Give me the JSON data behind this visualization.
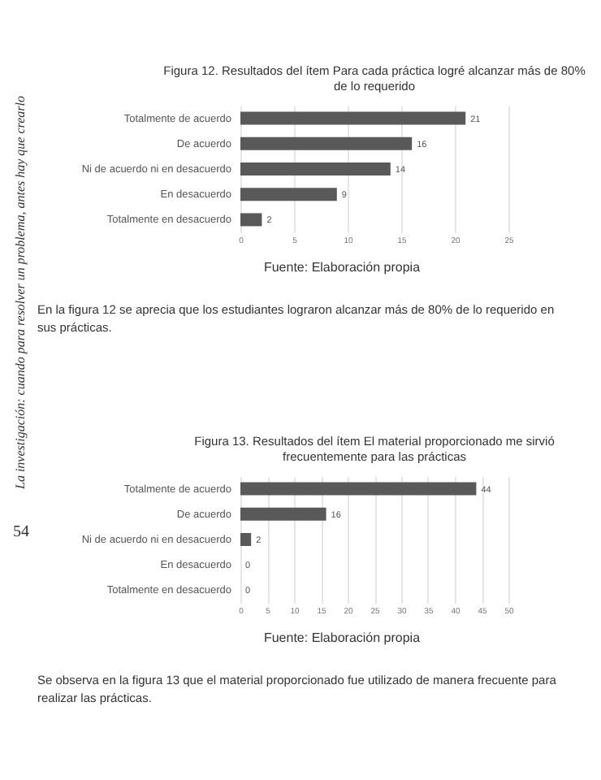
{
  "chart_data": [
    {
      "type": "bar",
      "orientation": "horizontal",
      "title": "Figura 12. Resultados del ítem Para cada práctica logré alcanzar más de 80% de lo requerido",
      "categories": [
        "Totalmente de acuerdo",
        "De acuerdo",
        "Ni de acuerdo ni en desacuerdo",
        "En desacuerdo",
        "Totalmente en desacuerdo"
      ],
      "values": [
        21,
        16,
        14,
        9,
        2
      ],
      "color": "#595959",
      "xlim": [
        0,
        25
      ],
      "xticks": [
        0,
        5,
        10,
        15,
        20,
        25
      ],
      "grid": "x",
      "data_labels": true,
      "annotations": [
        "Fuente: Elaboración propia",
        "En la figura 12 se aprecia que los estudiantes lograron alcanzar más de 80% de lo requerido en sus prácticas.",
        "La investigación: cuando para resolver un problema, antes hay que crearlo",
        "54"
      ]
    },
    {
      "type": "bar",
      "orientation": "horizontal",
      "title": "Figura 13. Resultados del ítem El material proporcionado me sirvió frecuentemente para las prácticas",
      "categories": [
        "Totalmente de acuerdo",
        "De acuerdo",
        "Ni de acuerdo ni en desacuerdo",
        "En desacuerdo",
        "Totalmente en desacuerdo"
      ],
      "values": [
        44,
        16,
        2,
        0,
        0
      ],
      "color": "#595959",
      "xlim": [
        0,
        50
      ],
      "xticks": [
        0,
        5,
        10,
        15,
        20,
        25,
        30,
        35,
        40,
        45,
        50
      ],
      "grid": "x",
      "data_labels": true,
      "annotations": [
        "Fuente: Elaboración propia",
        "Se observa en la figura 13 que el material proporcionado fue utilizado de manera frecuente para realizar las prácticas."
      ]
    }
  ]
}
